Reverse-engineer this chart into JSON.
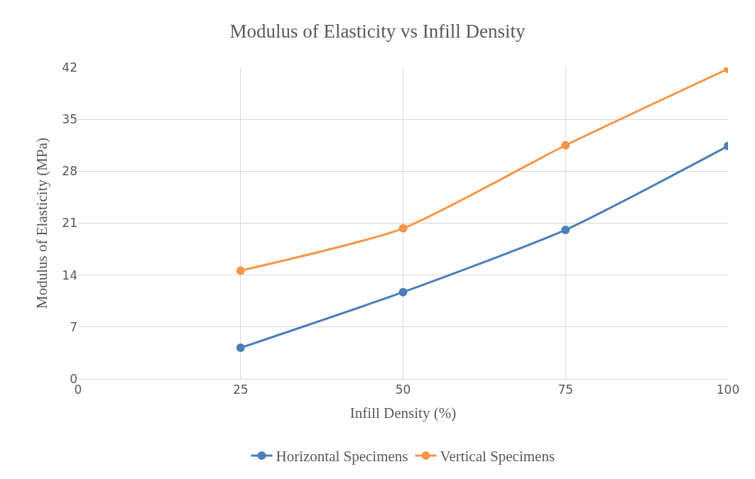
{
  "chart_data": {
    "type": "line",
    "title": "Modulus of Elasticity vs Infill Density",
    "xlabel": "Infill Density (%)",
    "ylabel": "Modulus of Elasticity (MPa)",
    "x": [
      25,
      50,
      75,
      100
    ],
    "series": [
      {
        "name": "Horizontal Specimens",
        "color": "#4a7ebb",
        "values": [
          4.2,
          11.7,
          20.1,
          31.4
        ]
      },
      {
        "name": "Vertical Specimens",
        "color": "#f79646",
        "values": [
          14.6,
          20.3,
          31.5,
          41.8
        ]
      }
    ],
    "xlim": [
      0,
      100
    ],
    "xticks": [
      0,
      25,
      50,
      75,
      100
    ],
    "ylim": [
      0,
      42
    ],
    "yticks": [
      0,
      7,
      14,
      21,
      28,
      35,
      42
    ],
    "grid": true,
    "legend": "bottom",
    "marker": "circle",
    "line_style": "solid"
  }
}
